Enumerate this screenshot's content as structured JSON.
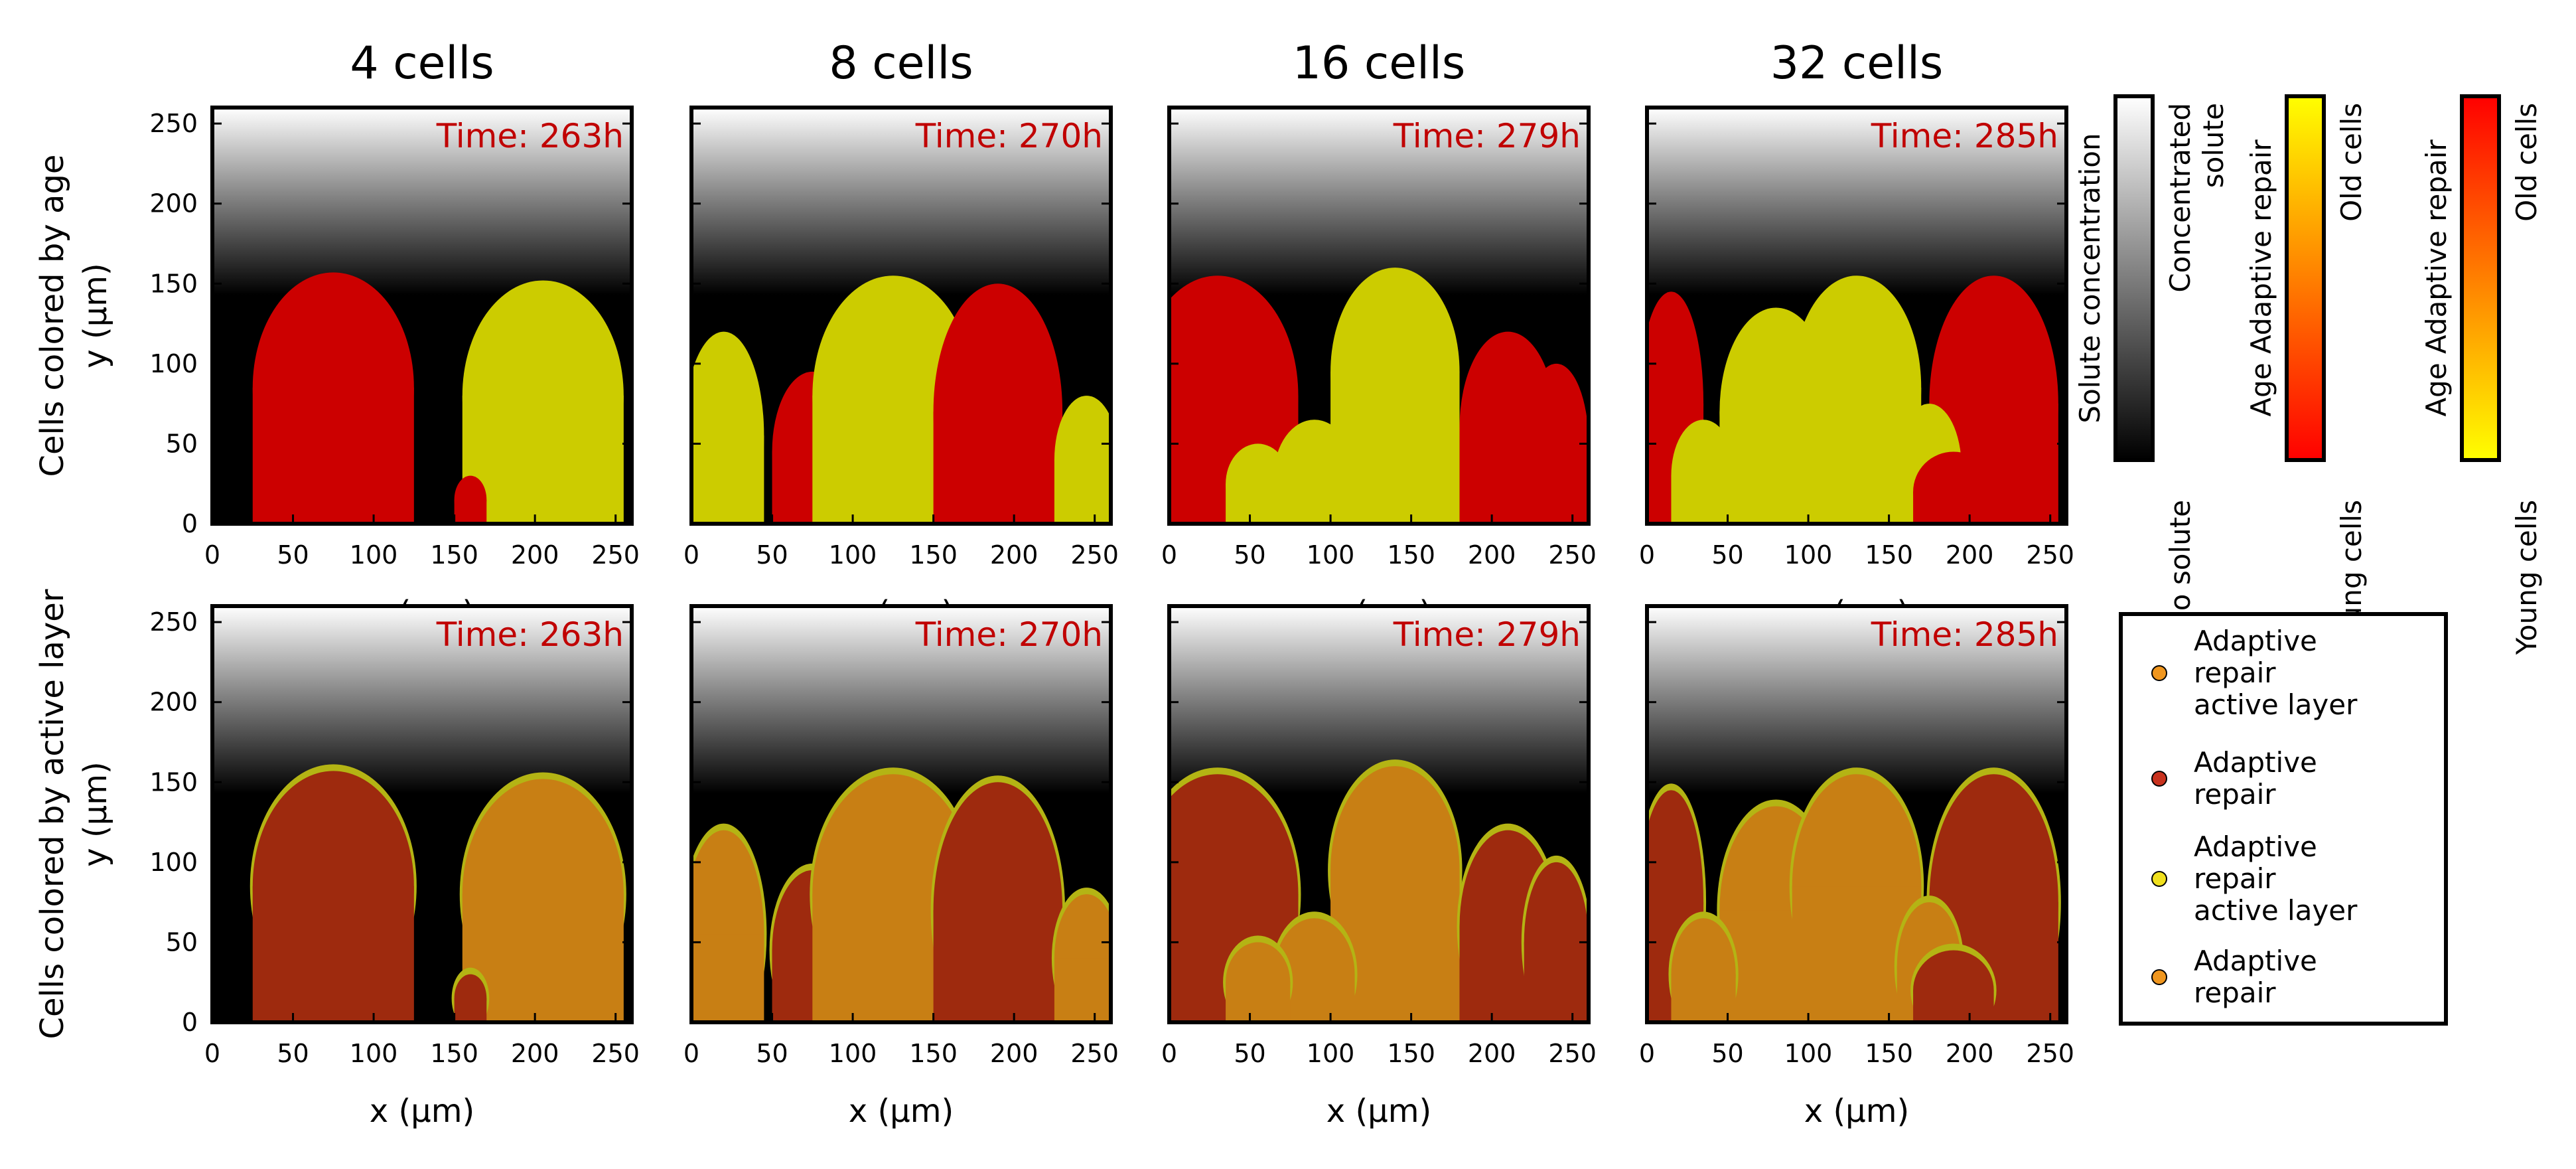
{
  "figure": {
    "column_titles": [
      "4 cells",
      "8 cells",
      "16 cells",
      "32 cells"
    ],
    "row_ylabels": [
      [
        "Cells colored by age",
        "y (μm)"
      ],
      [
        "Cells colored by active layer",
        "y (μm)"
      ]
    ],
    "xlabel": "x (μm)",
    "times": [
      "Time: 263h",
      "Time: 270h",
      "Time: 279h",
      "Time: 285h"
    ]
  },
  "colorbars": [
    {
      "label": "Solute concentration",
      "top_label": "Concentrated solute",
      "bottom_label": "No solute",
      "top_color": "#ffffff",
      "bottom_color": "#000000"
    },
    {
      "label": "Age Adaptive repair",
      "top_label": "Old cells",
      "bottom_label": "Young cells",
      "top_color": "#ffff00",
      "bottom_color": "#ff0000"
    },
    {
      "label": "Age Adaptive repair",
      "top_label": "Old cells",
      "bottom_label": "Young cells",
      "top_color": "#ff0000",
      "bottom_color": "#ffff00"
    }
  ],
  "legend": [
    {
      "label": "Adaptive repair active layer",
      "color": "#f0961e"
    },
    {
      "label": "Adaptive repair",
      "color": "#c8321e"
    },
    {
      "label": "Adaptive repair active layer",
      "color": "#f0e01e"
    },
    {
      "label": "Adaptive repair",
      "color": "#f0961e"
    }
  ],
  "colors": {
    "time_text": "#c00000",
    "age_old": "#cccc00",
    "age_young": "#cc0000",
    "layer_orange": "#c87f14",
    "layer_red": "#9e2a0e",
    "layer_top": "#b4b414"
  },
  "chart_data": [
    {
      "type": "heatmap",
      "panel": "age-4-cells",
      "title": "4 cells",
      "xlabel": "x (μm)",
      "ylabel": "y (μm)",
      "xlim": [
        0,
        260
      ],
      "ylim": [
        0,
        260
      ],
      "xticks": [
        0,
        50,
        100,
        150,
        200,
        250
      ],
      "yticks": [
        0,
        50,
        100,
        150,
        200,
        250
      ],
      "annotation": "Time: 263h"
    },
    {
      "type": "heatmap",
      "panel": "age-8-cells",
      "title": "8 cells",
      "xlabel": "x (μm)",
      "xlim": [
        0,
        260
      ],
      "ylim": [
        0,
        260
      ],
      "xticks": [
        0,
        50,
        100,
        150,
        200,
        250
      ],
      "annotation": "Time: 270h"
    },
    {
      "type": "heatmap",
      "panel": "age-16-cells",
      "title": "16 cells",
      "xlabel": "x (μm)",
      "xlim": [
        0,
        260
      ],
      "ylim": [
        0,
        260
      ],
      "xticks": [
        0,
        50,
        100,
        150,
        200,
        250
      ],
      "annotation": "Time: 279h"
    },
    {
      "type": "heatmap",
      "panel": "age-32-cells",
      "title": "32 cells",
      "xlabel": "x (μm)",
      "xlim": [
        0,
        260
      ],
      "ylim": [
        0,
        260
      ],
      "xticks": [
        0,
        50,
        100,
        150,
        200,
        250
      ],
      "annotation": "Time: 285h"
    },
    {
      "type": "heatmap",
      "panel": "layer-4-cells",
      "xlabel": "x (μm)",
      "ylabel": "y (μm)",
      "xlim": [
        0,
        260
      ],
      "ylim": [
        0,
        260
      ],
      "xticks": [
        0,
        50,
        100,
        150,
        200,
        250
      ],
      "yticks": [
        0,
        50,
        100,
        150,
        200,
        250
      ],
      "annotation": "Time: 263h"
    },
    {
      "type": "heatmap",
      "panel": "layer-8-cells",
      "xlabel": "x (μm)",
      "xlim": [
        0,
        260
      ],
      "ylim": [
        0,
        260
      ],
      "xticks": [
        0,
        50,
        100,
        150,
        200,
        250
      ],
      "annotation": "Time: 270h"
    },
    {
      "type": "heatmap",
      "panel": "layer-16-cells",
      "xlabel": "x (μm)",
      "xlim": [
        0,
        260
      ],
      "ylim": [
        0,
        260
      ],
      "xticks": [
        0,
        50,
        100,
        150,
        200,
        250
      ],
      "annotation": "Time: 279h"
    },
    {
      "type": "heatmap",
      "panel": "layer-32-cells",
      "xlabel": "x (μm)",
      "xlim": [
        0,
        260
      ],
      "ylim": [
        0,
        260
      ],
      "xticks": [
        0,
        50,
        100,
        150,
        200,
        250
      ],
      "annotation": "Time: 285h"
    }
  ]
}
